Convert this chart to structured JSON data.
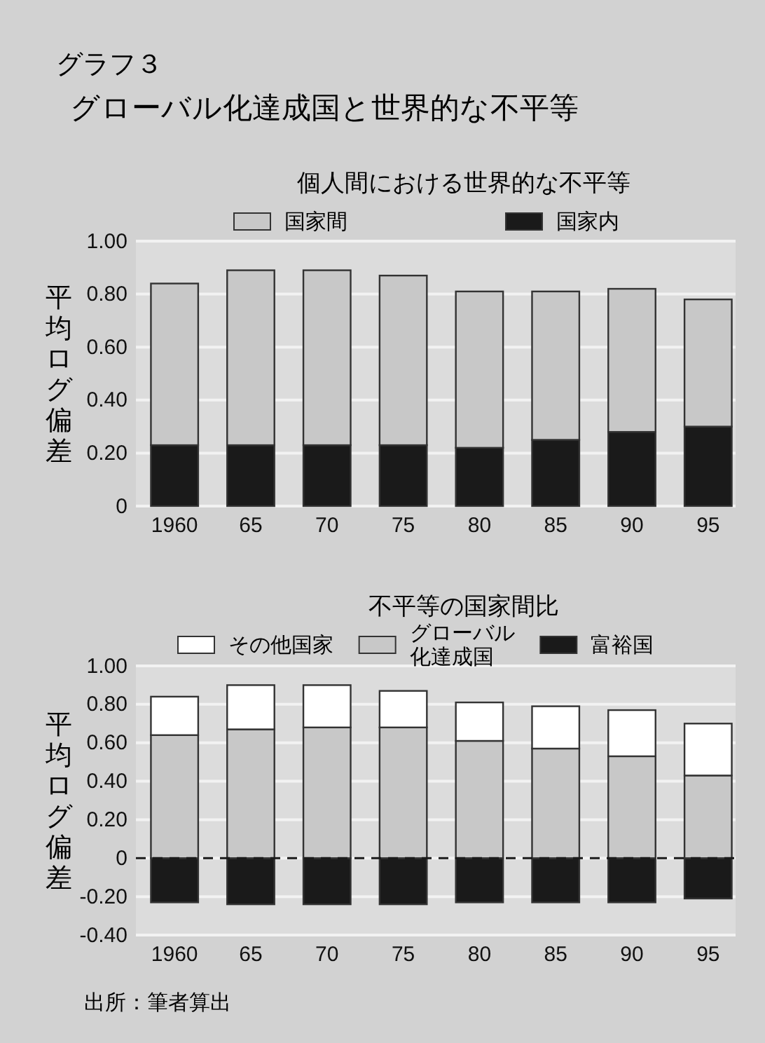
{
  "chart_data": [
    {
      "type": "bar",
      "stacked": true,
      "title": "個人間における世界的な不平等",
      "ylabel": "平均ログ偏差",
      "annotations": [
        "グラフ３",
        "グローバル化達成国と世界的な不平等"
      ],
      "categories": [
        "1960",
        "65",
        "70",
        "75",
        "80",
        "85",
        "90",
        "95"
      ],
      "series": [
        {
          "name": "国家内",
          "color": "#1a1a1a",
          "values": [
            0.23,
            0.23,
            0.23,
            0.23,
            0.22,
            0.25,
            0.28,
            0.3
          ]
        },
        {
          "name": "国家間",
          "color": "#c8c8c8",
          "values": [
            0.61,
            0.66,
            0.66,
            0.64,
            0.59,
            0.56,
            0.54,
            0.48
          ]
        }
      ],
      "ylim": [
        0,
        1
      ],
      "yticks": [
        0,
        {
          "value": 0.2,
          "label": "0.20"
        },
        {
          "value": 0.4,
          "label": "0.40"
        },
        {
          "value": 0.6,
          "label": "0.60"
        },
        {
          "value": 0.8,
          "label": "0.80"
        },
        {
          "value": 1,
          "label": "1.00"
        }
      ],
      "grid": "y",
      "legend": "top"
    },
    {
      "type": "bar",
      "stacked": true,
      "title": "不平等の国家間比",
      "ylabel": "平均ログ偏差",
      "annotations": [
        "出所：筆者算出"
      ],
      "categories": [
        "1960",
        "65",
        "70",
        "75",
        "80",
        "85",
        "90",
        "95"
      ],
      "series": [
        {
          "name": "富裕国",
          "color": "#1a1a1a",
          "values": [
            -0.23,
            -0.24,
            -0.24,
            -0.24,
            -0.23,
            -0.23,
            -0.23,
            -0.21
          ]
        },
        {
          "name": "グローバル化達成国",
          "color": "#c8c8c8",
          "values": [
            0.64,
            0.67,
            0.68,
            0.68,
            0.61,
            0.57,
            0.53,
            0.43
          ]
        },
        {
          "name": "その他国家",
          "color": "#ffffff",
          "values": [
            0.2,
            0.23,
            0.22,
            0.19,
            0.2,
            0.22,
            0.24,
            0.27
          ]
        }
      ],
      "ylim": [
        -0.4,
        1
      ],
      "yticks": [
        {
          "value": -0.4,
          "label": "-0.40"
        },
        {
          "value": -0.2,
          "label": "-0.20"
        },
        0,
        {
          "value": 0.2,
          "label": "0.20"
        },
        {
          "value": 0.4,
          "label": "0.40"
        },
        {
          "value": 0.6,
          "label": "0.60"
        },
        {
          "value": 0.8,
          "label": "0.80"
        },
        {
          "value": 1,
          "label": "1.00"
        }
      ],
      "ref_lines": [
        {
          "axis": "y",
          "value": 0,
          "color": "#1a1a1a",
          "line_style": "dashed"
        }
      ],
      "grid": "y",
      "legend": "top"
    }
  ]
}
